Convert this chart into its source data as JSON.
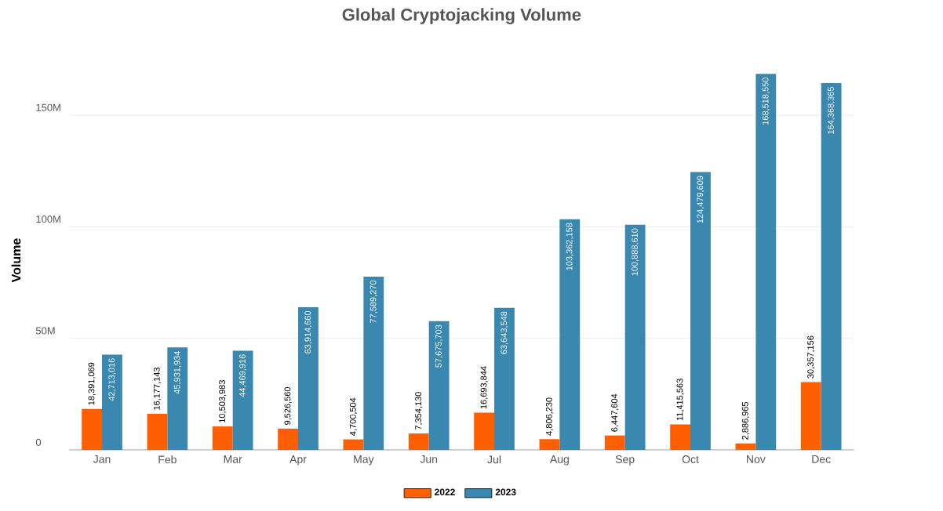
{
  "chart_data": {
    "type": "bar",
    "title": "Global Cryptojacking Volume",
    "ylabel": "Volume",
    "categories": [
      "Jan",
      "Feb",
      "Mar",
      "Apr",
      "May",
      "Jun",
      "Jul",
      "Aug",
      "Sep",
      "Oct",
      "Nov",
      "Dec"
    ],
    "series": [
      {
        "name": "2022",
        "color": "#ff5f00",
        "values": [
          18391069,
          16177143,
          10503983,
          9526560,
          4700504,
          7354130,
          16693844,
          4806230,
          6447604,
          11415563,
          2886965,
          30357156
        ],
        "value_labels": [
          "18,391,069",
          "16,177,143",
          "10,503,983",
          "9,526,560",
          "4,700,504",
          "7,354,130",
          "16,693,844",
          "4,806,230",
          "6,447,604",
          "11,415,563",
          "2,886,965",
          "30,357,156"
        ]
      },
      {
        "name": "2023",
        "color": "#3a87b0",
        "values": [
          42713016,
          45931934,
          44469916,
          63914660,
          77589270,
          57675703,
          63643548,
          103362158,
          100888610,
          124479609,
          168518550,
          164368365
        ],
        "value_labels": [
          "42,713,016",
          "45,931,934",
          "44,469,916",
          "63,914,660",
          "77,589,270",
          "57,675,703",
          "63,643,548",
          "103,362,158",
          "100,888,610",
          "124,479,609",
          "168,518,550",
          "164,368,365"
        ]
      }
    ],
    "ylim": [
      0,
      170000000
    ],
    "yticks": [
      {
        "value": 0,
        "label": "0"
      },
      {
        "value": 50000000,
        "label": "50M"
      },
      {
        "value": 100000000,
        "label": "100M"
      },
      {
        "value": 150000000,
        "label": "150M"
      }
    ],
    "grid": "y",
    "legend": "bottom"
  }
}
